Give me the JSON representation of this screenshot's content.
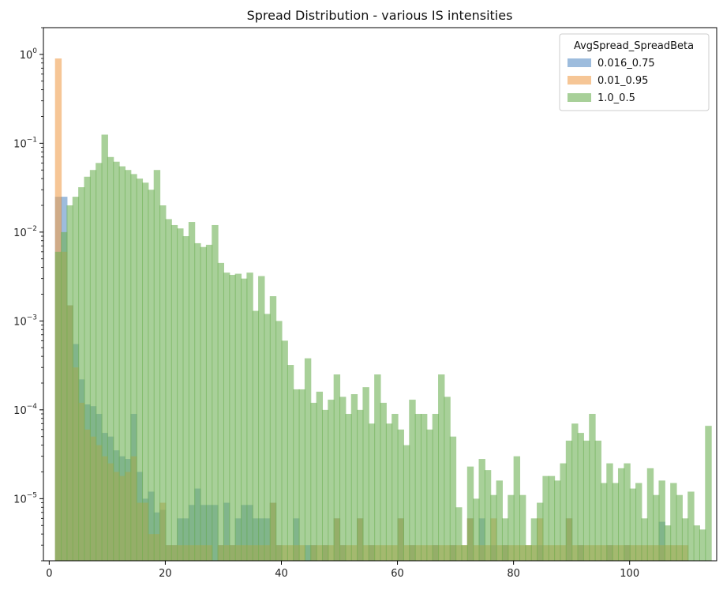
{
  "chart_data": {
    "type": "bar",
    "title": "Spread Distribution - various IS intensities",
    "xlabel": "",
    "ylabel": "",
    "xlim": [
      -1,
      115
    ],
    "ylim": [
      2e-06,
      2
    ],
    "yscale": "log",
    "grid": false,
    "bin_width": 1.143,
    "x_ticks": [
      0,
      20,
      40,
      60,
      80,
      100
    ],
    "x_tick_labels": [
      "0",
      "20",
      "40",
      "60",
      "80",
      "100"
    ],
    "y_ticks": [
      1,
      0.1,
      0.01,
      0.001,
      0.0001,
      1e-05
    ],
    "y_tick_labels": [
      {
        "base": "10",
        "exp": "0"
      },
      {
        "base": "10",
        "exp": "−1"
      },
      {
        "base": "10",
        "exp": "−2"
      },
      {
        "base": "10",
        "exp": "−3"
      },
      {
        "base": "10",
        "exp": "−4"
      },
      {
        "base": "10",
        "exp": "−5"
      }
    ],
    "legend": {
      "title": "AvgSpread_SpreadBeta",
      "placement": "top-right"
    },
    "series": [
      {
        "name": "0.016_0.75",
        "color": "#5b8fc7",
        "opacity": 0.6,
        "bins": [
          [
            1.0,
            0.025
          ],
          [
            2.0,
            0.025
          ],
          [
            3.0,
            0.0015
          ],
          [
            4.0,
            0.00055
          ],
          [
            5.0,
            0.00022
          ],
          [
            6.0,
            0.000115
          ],
          [
            7.0,
            0.00011
          ],
          [
            8.0,
            9e-05
          ],
          [
            9.0,
            5.5e-05
          ],
          [
            10.0,
            5e-05
          ],
          [
            11.0,
            3.5e-05
          ],
          [
            12.0,
            3e-05
          ],
          [
            13.0,
            2.8e-05
          ],
          [
            14.0,
            9e-05
          ],
          [
            15.0,
            2e-05
          ],
          [
            16.0,
            1e-05
          ],
          [
            17.0,
            1.2e-05
          ],
          [
            18.0,
            7e-06
          ],
          [
            19.0,
            7.5e-06
          ],
          [
            20.0,
            3e-06
          ],
          [
            21.0,
            3e-06
          ],
          [
            22.0,
            6e-06
          ],
          [
            23.0,
            6e-06
          ],
          [
            24.0,
            8.5e-06
          ],
          [
            25.0,
            1.3e-05
          ],
          [
            26.0,
            8.5e-06
          ],
          [
            27.0,
            8.5e-06
          ],
          [
            28.0,
            8.5e-06
          ],
          [
            29.0,
            3e-06
          ],
          [
            30.0,
            9e-06
          ],
          [
            31.0,
            3e-06
          ],
          [
            32.0,
            6e-06
          ],
          [
            33.0,
            8.5e-06
          ],
          [
            34.0,
            8.5e-06
          ],
          [
            35.0,
            6e-06
          ],
          [
            36.0,
            6e-06
          ],
          [
            37.0,
            6e-06
          ],
          [
            38.0,
            9e-06
          ],
          [
            39.0,
            3e-06
          ],
          [
            42.0,
            6e-06
          ],
          [
            44.0,
            3e-06
          ],
          [
            45.0,
            3e-06
          ],
          [
            47.0,
            3e-06
          ],
          [
            49.0,
            6e-06
          ],
          [
            50.0,
            3e-06
          ],
          [
            53.0,
            6e-06
          ],
          [
            55.0,
            3e-06
          ],
          [
            60.0,
            6e-06
          ],
          [
            62.0,
            3e-06
          ],
          [
            66.0,
            3e-06
          ],
          [
            69.0,
            3e-06
          ],
          [
            72.0,
            6e-06
          ],
          [
            74.0,
            6e-06
          ],
          [
            76.0,
            3e-06
          ],
          [
            78.0,
            3e-06
          ],
          [
            84.0,
            3e-06
          ],
          [
            89.0,
            6e-06
          ],
          [
            91.0,
            3e-06
          ],
          [
            96.0,
            3e-06
          ],
          [
            99.0,
            3e-06
          ],
          [
            105.0,
            5.5e-06
          ]
        ]
      },
      {
        "name": "0.01_0.95",
        "color": "#f0a050",
        "opacity": 0.6,
        "bins": [
          [
            1.0,
            0.9
          ],
          [
            2.0,
            0.006
          ],
          [
            3.0,
            0.0015
          ],
          [
            4.0,
            0.0003
          ],
          [
            5.0,
            0.00012
          ],
          [
            6.0,
            6e-05
          ],
          [
            7.0,
            5e-05
          ],
          [
            8.0,
            4e-05
          ],
          [
            9.0,
            3e-05
          ],
          [
            10.0,
            2.5e-05
          ],
          [
            11.0,
            2e-05
          ],
          [
            12.0,
            1.8e-05
          ],
          [
            13.0,
            2e-05
          ],
          [
            14.0,
            3e-05
          ],
          [
            15.0,
            9e-06
          ],
          [
            16.0,
            9e-06
          ],
          [
            17.0,
            4e-06
          ],
          [
            18.0,
            4e-06
          ],
          [
            19.0,
            9e-06
          ],
          [
            20.0,
            3e-06
          ],
          [
            21.0,
            3e-06
          ],
          [
            22.0,
            3e-06
          ],
          [
            23.0,
            3e-06
          ],
          [
            24.0,
            3e-06
          ],
          [
            25.0,
            3e-06
          ],
          [
            26.0,
            3e-06
          ],
          [
            27.0,
            3e-06
          ],
          [
            29.0,
            3e-06
          ],
          [
            30.0,
            3e-06
          ],
          [
            31.0,
            3e-06
          ],
          [
            32.0,
            3e-06
          ],
          [
            33.0,
            3e-06
          ],
          [
            34.0,
            3e-06
          ],
          [
            35.0,
            3e-06
          ],
          [
            36.0,
            3e-06
          ],
          [
            37.0,
            3e-06
          ],
          [
            38.0,
            9e-06
          ],
          [
            39.0,
            3e-06
          ],
          [
            40.0,
            3e-06
          ],
          [
            41.0,
            3e-06
          ],
          [
            42.0,
            3e-06
          ],
          [
            43.0,
            3e-06
          ],
          [
            45.0,
            3e-06
          ],
          [
            46.0,
            3e-06
          ],
          [
            47.0,
            3e-06
          ],
          [
            48.0,
            3e-06
          ],
          [
            49.0,
            6e-06
          ],
          [
            50.0,
            3e-06
          ],
          [
            51.0,
            3e-06
          ],
          [
            52.0,
            3e-06
          ],
          [
            53.0,
            6e-06
          ],
          [
            54.0,
            3e-06
          ],
          [
            55.0,
            3e-06
          ],
          [
            56.0,
            3e-06
          ],
          [
            57.0,
            3e-06
          ],
          [
            58.0,
            3e-06
          ],
          [
            59.0,
            3e-06
          ],
          [
            60.0,
            6e-06
          ],
          [
            61.0,
            3e-06
          ],
          [
            62.0,
            3e-06
          ],
          [
            63.0,
            3e-06
          ],
          [
            64.0,
            3e-06
          ],
          [
            65.0,
            3e-06
          ],
          [
            66.0,
            3e-06
          ],
          [
            67.0,
            3e-06
          ],
          [
            68.0,
            3e-06
          ],
          [
            69.0,
            3e-06
          ],
          [
            70.0,
            3e-06
          ],
          [
            71.0,
            3e-06
          ],
          [
            72.0,
            6e-06
          ],
          [
            73.0,
            3e-06
          ],
          [
            74.0,
            3e-06
          ],
          [
            75.0,
            3e-06
          ],
          [
            76.0,
            6e-06
          ],
          [
            77.0,
            3e-06
          ],
          [
            78.0,
            3e-06
          ],
          [
            79.0,
            3e-06
          ],
          [
            80.0,
            3e-06
          ],
          [
            81.0,
            3e-06
          ],
          [
            82.0,
            3e-06
          ],
          [
            83.0,
            3e-06
          ],
          [
            84.0,
            6e-06
          ],
          [
            85.0,
            3e-06
          ],
          [
            86.0,
            3e-06
          ],
          [
            87.0,
            3e-06
          ],
          [
            88.0,
            3e-06
          ],
          [
            89.0,
            6e-06
          ],
          [
            90.0,
            3e-06
          ],
          [
            91.0,
            3e-06
          ],
          [
            92.0,
            3e-06
          ],
          [
            93.0,
            3e-06
          ],
          [
            94.0,
            3e-06
          ],
          [
            95.0,
            3e-06
          ],
          [
            96.0,
            3e-06
          ],
          [
            97.0,
            3e-06
          ],
          [
            98.0,
            3e-06
          ],
          [
            99.0,
            3e-06
          ],
          [
            100.0,
            3e-06
          ],
          [
            101.0,
            3e-06
          ],
          [
            102.0,
            3e-06
          ],
          [
            103.0,
            3e-06
          ],
          [
            104.0,
            3e-06
          ],
          [
            105.0,
            3e-06
          ],
          [
            106.0,
            3e-06
          ],
          [
            107.0,
            3e-06
          ],
          [
            108.0,
            3e-06
          ],
          [
            109.0,
            3e-06
          ]
        ]
      },
      {
        "name": "1.0_0.5",
        "color": "#6eb155",
        "opacity": 0.6,
        "bins": [
          [
            1.0,
            0.006
          ],
          [
            2.0,
            0.01
          ],
          [
            3.0,
            0.02
          ],
          [
            4.0,
            0.025
          ],
          [
            5.0,
            0.032
          ],
          [
            6.0,
            0.042
          ],
          [
            7.0,
            0.05
          ],
          [
            8.0,
            0.06
          ],
          [
            9.0,
            0.125
          ],
          [
            10.0,
            0.07
          ],
          [
            11.0,
            0.062
          ],
          [
            12.0,
            0.055
          ],
          [
            13.0,
            0.05
          ],
          [
            14.0,
            0.045
          ],
          [
            15.0,
            0.04
          ],
          [
            16.0,
            0.036
          ],
          [
            17.0,
            0.03
          ],
          [
            18.0,
            0.05
          ],
          [
            19.0,
            0.02
          ],
          [
            20.0,
            0.014
          ],
          [
            21.0,
            0.012
          ],
          [
            22.0,
            0.011
          ],
          [
            23.0,
            0.009
          ],
          [
            24.0,
            0.013
          ],
          [
            25.0,
            0.0075
          ],
          [
            26.0,
            0.0068
          ],
          [
            27.0,
            0.0072
          ],
          [
            28.0,
            0.012
          ],
          [
            29.0,
            0.0045
          ],
          [
            30.0,
            0.0035
          ],
          [
            31.0,
            0.0033
          ],
          [
            32.0,
            0.0034
          ],
          [
            33.0,
            0.003
          ],
          [
            34.0,
            0.0035
          ],
          [
            35.0,
            0.0013
          ],
          [
            36.0,
            0.0032
          ],
          [
            37.0,
            0.0012
          ],
          [
            38.0,
            0.0019
          ],
          [
            39.0,
            0.001
          ],
          [
            40.0,
            0.0006
          ],
          [
            41.0,
            0.00032
          ],
          [
            42.0,
            0.00017
          ],
          [
            43.0,
            0.00017
          ],
          [
            44.0,
            0.00038
          ],
          [
            45.0,
            0.00012
          ],
          [
            46.0,
            0.00016
          ],
          [
            47.0,
            0.0001
          ],
          [
            48.0,
            0.00013
          ],
          [
            49.0,
            0.00025
          ],
          [
            50.0,
            0.00014
          ],
          [
            51.0,
            9e-05
          ],
          [
            52.0,
            0.00015
          ],
          [
            53.0,
            0.0001
          ],
          [
            54.0,
            0.00018
          ],
          [
            55.0,
            7e-05
          ],
          [
            56.0,
            0.00025
          ],
          [
            57.0,
            0.00012
          ],
          [
            58.0,
            7e-05
          ],
          [
            59.0,
            9e-05
          ],
          [
            60.0,
            6e-05
          ],
          [
            61.0,
            4e-05
          ],
          [
            62.0,
            0.00013
          ],
          [
            63.0,
            9e-05
          ],
          [
            64.0,
            9e-05
          ],
          [
            65.0,
            6e-05
          ],
          [
            66.0,
            9e-05
          ],
          [
            67.0,
            0.00025
          ],
          [
            68.0,
            0.00014
          ],
          [
            69.0,
            5e-05
          ],
          [
            70.0,
            8e-06
          ],
          [
            71.0,
            3e-06
          ],
          [
            72.0,
            2.3e-05
          ],
          [
            73.0,
            1e-05
          ],
          [
            74.0,
            2.8e-05
          ],
          [
            75.0,
            2.1e-05
          ],
          [
            76.0,
            1.1e-05
          ],
          [
            77.0,
            1.6e-05
          ],
          [
            78.0,
            6e-06
          ],
          [
            79.0,
            1.1e-05
          ],
          [
            80.0,
            3e-05
          ],
          [
            81.0,
            1.1e-05
          ],
          [
            82.0,
            3e-06
          ],
          [
            83.0,
            6e-06
          ],
          [
            84.0,
            9e-06
          ],
          [
            85.0,
            1.8e-05
          ],
          [
            86.0,
            1.8e-05
          ],
          [
            87.0,
            1.6e-05
          ],
          [
            88.0,
            2.5e-05
          ],
          [
            89.0,
            4.5e-05
          ],
          [
            90.0,
            7e-05
          ],
          [
            91.0,
            5.5e-05
          ],
          [
            92.0,
            4.5e-05
          ],
          [
            93.0,
            9e-05
          ],
          [
            94.0,
            4.5e-05
          ],
          [
            95.0,
            1.5e-05
          ],
          [
            96.0,
            2.5e-05
          ],
          [
            97.0,
            1.5e-05
          ],
          [
            98.0,
            2.2e-05
          ],
          [
            99.0,
            2.5e-05
          ],
          [
            100.0,
            1.3e-05
          ],
          [
            101.0,
            1.5e-05
          ],
          [
            102.0,
            6e-06
          ],
          [
            103.0,
            2.2e-05
          ],
          [
            104.0,
            1.1e-05
          ],
          [
            105.0,
            1.6e-05
          ],
          [
            106.0,
            5e-06
          ],
          [
            107.0,
            1.5e-05
          ],
          [
            108.0,
            1.1e-05
          ],
          [
            109.0,
            6e-06
          ],
          [
            110.0,
            1.2e-05
          ],
          [
            111.0,
            5e-06
          ],
          [
            112.0,
            4.5e-06
          ],
          [
            113.0,
            6.6e-05
          ]
        ]
      }
    ]
  }
}
